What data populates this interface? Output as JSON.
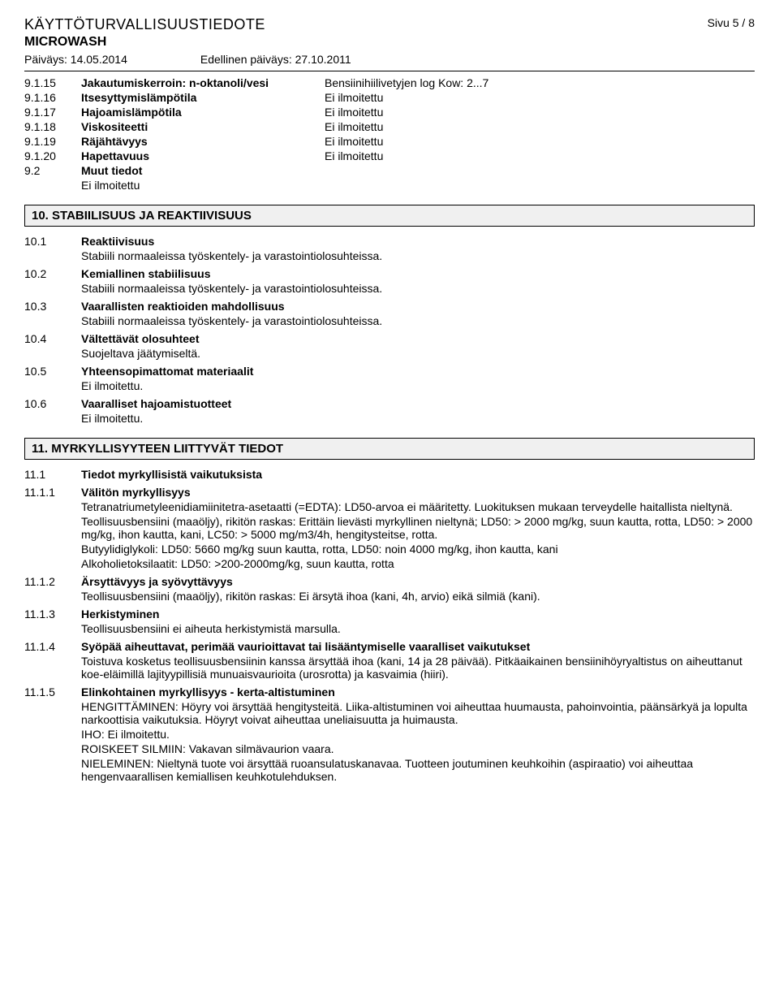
{
  "header": {
    "doc_title": "KÄYTTÖTURVALLISUUSTIEDOTE",
    "product": "MICROWASH",
    "page": "Sivu 5 / 8",
    "date_label": "Päiväys: 14.05.2014",
    "prev_date_label": "Edellinen päiväys: 27.10.2011"
  },
  "props": [
    {
      "num": "9.1.15",
      "label": "Jakautumiskerroin: n-oktanoli/vesi",
      "val": "Bensiinihiilivetyjen log Kow: 2...7"
    },
    {
      "num": "9.1.16",
      "label": "Itsesyttymislämpötila",
      "val": "Ei ilmoitettu"
    },
    {
      "num": "9.1.17",
      "label": "Hajoamislämpötila",
      "val": "Ei ilmoitettu"
    },
    {
      "num": "9.1.18",
      "label": "Viskositeetti",
      "val": "Ei ilmoitettu"
    },
    {
      "num": "9.1.19",
      "label": "Räjähtävyys",
      "val": "Ei ilmoitettu"
    },
    {
      "num": "9.1.20",
      "label": "Hapettavuus",
      "val": "Ei ilmoitettu"
    }
  ],
  "muut": {
    "num": "9.2",
    "label": "Muut tiedot",
    "body": "Ei ilmoitettu"
  },
  "sec10": {
    "title": "10. STABIILISUUS JA REAKTIIVISUUS",
    "items": [
      {
        "num": "10.1",
        "head": "Reaktiivisuus",
        "body": "Stabiili normaaleissa työskentely- ja varastointiolosuhteissa."
      },
      {
        "num": "10.2",
        "head": "Kemiallinen stabiilisuus",
        "body": "Stabiili normaaleissa työskentely- ja varastointiolosuhteissa."
      },
      {
        "num": "10.3",
        "head": "Vaarallisten reaktioiden mahdollisuus",
        "body": "Stabiili normaaleissa työskentely- ja varastointiolosuhteissa."
      },
      {
        "num": "10.4",
        "head": "Vältettävät olosuhteet",
        "body": "Suojeltava jäätymiseltä."
      },
      {
        "num": "10.5",
        "head": "Yhteensopimattomat materiaalit",
        "body": "Ei ilmoitettu."
      },
      {
        "num": "10.6",
        "head": "Vaaralliset hajoamistuotteet",
        "body": "Ei ilmoitettu."
      }
    ]
  },
  "sec11": {
    "title": "11. MYRKYLLISYYTEEN LIITTYVÄT TIEDOT",
    "h11_1": {
      "num": "11.1",
      "head": "Tiedot myrkyllisistä vaikutuksista"
    },
    "h11_1_1": {
      "num": "11.1.1",
      "head": "Välitön myrkyllisyys",
      "p1": "Tetranatriumetyleenidiamiinitetra-asetaatti (=EDTA): LD50-arvoa ei määritetty. Luokituksen mukaan terveydelle haitallista nieltynä.",
      "p2": "Teollisuusbensiini (maaöljy), rikitön raskas: Erittäin lievästi myrkyllinen nieltynä; LD50: > 2000 mg/kg, suun kautta, rotta, LD50: > 2000 mg/kg, ihon kautta, kani, LC50: > 5000 mg/m3/4h, hengitysteitse, rotta.",
      "p3": "Butyylidiglykoli: LD50: 5660 mg/kg suun kautta, rotta, LD50: noin 4000 mg/kg, ihon kautta, kani",
      "p4": "Alkoholietoksilaatit: LD50: >200-2000mg/kg, suun kautta, rotta"
    },
    "h11_1_2": {
      "num": "11.1.2",
      "head": "Ärsyttävyys ja syövyttävyys",
      "p1": "Teollisuusbensiini (maaöljy), rikitön raskas: Ei ärsytä ihoa (kani, 4h, arvio) eikä silmiä (kani)."
    },
    "h11_1_3": {
      "num": "11.1.3",
      "head": "Herkistyminen",
      "p1": "Teollisuusbensiini ei aiheuta herkistymistä marsulla."
    },
    "h11_1_4": {
      "num": "11.1.4",
      "head": "Syöpää aiheuttavat, perimää vaurioittavat tai lisääntymiselle vaaralliset vaikutukset",
      "p1": "Toistuva kosketus teollisuusbensiinin kanssa ärsyttää ihoa (kani, 14 ja 28 päivää). Pitkäaikainen bensiinihöyryaltistus on aiheuttanut koe-eläimillä lajityypillisiä munuaisvaurioita (urosrotta) ja kasvaimia (hiiri)."
    },
    "h11_1_5": {
      "num": "11.1.5",
      "head": "Elinkohtainen myrkyllisyys - kerta-altistuminen",
      "p1": "HENGITTÄMINEN: Höyry voi ärsyttää hengitysteitä. Liika-altistuminen voi aiheuttaa huumausta, pahoinvointia, päänsärkyä ja lopulta narkoottisia vaikutuksia. Höyryt voivat aiheuttaa uneliaisuutta ja huimausta.",
      "p2": "IHO: Ei ilmoitettu.",
      "p3": "ROISKEET SILMIIN: Vakavan silmävaurion vaara.",
      "p4": "NIELEMINEN: Nieltynä tuote voi ärsyttää ruoansulatuskanavaa. Tuotteen joutuminen keuhkoihin (aspiraatio) voi aiheuttaa hengenvaarallisen kemiallisen keuhkotulehduksen."
    }
  }
}
